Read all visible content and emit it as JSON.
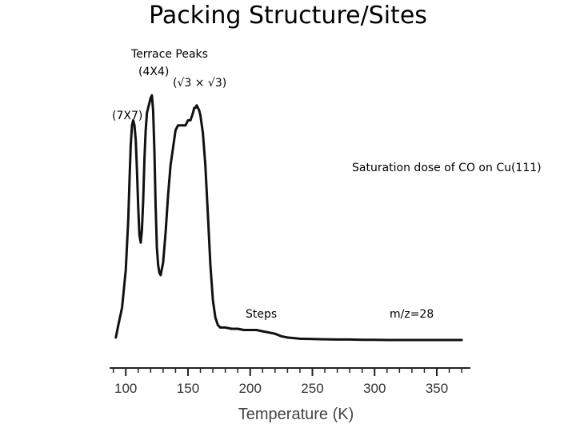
{
  "slide": {
    "title": "Packing Structure/Sites"
  },
  "annotations": {
    "terrace_peaks": "Terrace Peaks",
    "p4x4": "(4X4)",
    "sqrt3": "(√3 × √3)",
    "p7x7": "(7X7)",
    "saturation": "Saturation dose of CO on Cu(111)",
    "steps": "Steps",
    "mz": "m/z=28"
  },
  "chart_data": {
    "type": "line",
    "title": "",
    "xlabel": "Temperature (K)",
    "ylabel": "",
    "xlim": [
      87,
      377
    ],
    "ylim": [
      0,
      100
    ],
    "x_ticks": [
      100,
      150,
      200,
      250,
      300,
      350
    ],
    "x_tick_labels": [
      "100",
      "150",
      "200",
      "250",
      "300",
      "350"
    ],
    "y_axis_shown": false,
    "grid": false,
    "legend": "none",
    "line_color": "#111111",
    "series": [
      {
        "x": [
          92,
          94,
          97,
          100,
          102,
          103,
          104,
          105,
          106,
          107,
          108,
          109,
          110,
          111,
          112,
          113,
          114,
          115,
          116,
          117,
          118,
          119,
          120,
          121,
          122,
          123,
          124,
          125,
          126,
          127,
          128,
          130,
          132,
          134,
          136,
          138,
          140,
          142,
          145,
          148,
          150,
          152,
          154,
          155,
          156,
          157,
          158,
          159,
          160,
          162,
          164,
          166,
          168,
          170,
          172,
          174,
          176,
          180,
          185,
          190,
          195,
          200,
          205,
          210,
          215,
          220,
          225,
          230,
          240,
          250,
          260,
          270,
          280,
          290,
          300,
          310,
          320,
          330,
          340,
          350,
          360,
          370
        ],
        "y": [
          1,
          6,
          13,
          28,
          48,
          64,
          78,
          86,
          88,
          86,
          80,
          68,
          53,
          42,
          39,
          44,
          56,
          72,
          84,
          91,
          93,
          95,
          97,
          98,
          92,
          76,
          54,
          37,
          30,
          27,
          26,
          31,
          43,
          58,
          70,
          77,
          84,
          86,
          86,
          86,
          88,
          88,
          91,
          93,
          93,
          94,
          93,
          92,
          90,
          83,
          70,
          50,
          30,
          16,
          9,
          6,
          5,
          5,
          4.5,
          4.5,
          4,
          4,
          4,
          3.5,
          3,
          2.5,
          1.5,
          1,
          0.5,
          0.4,
          0.3,
          0.2,
          0.2,
          0.1,
          0.1,
          0,
          0,
          0,
          0,
          0,
          0,
          0
        ]
      }
    ]
  }
}
